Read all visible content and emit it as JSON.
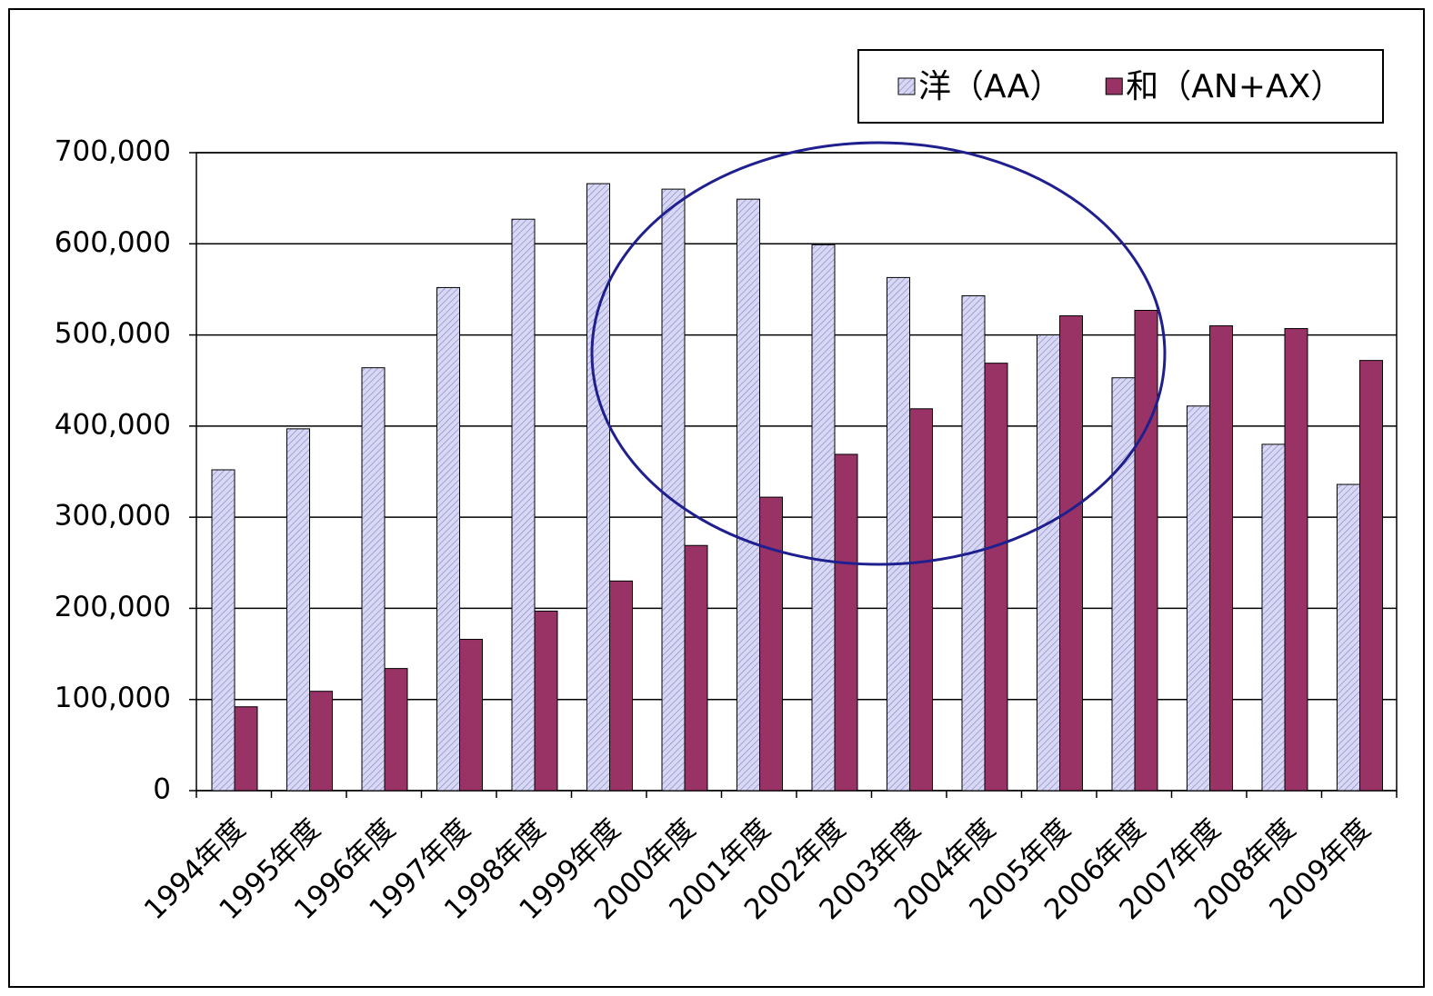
{
  "chart_data": {
    "type": "bar",
    "categories": [
      "1994年度",
      "1995年度",
      "1996年度",
      "1997年度",
      "1998年度",
      "1999年度",
      "2000年度",
      "2001年度",
      "2002年度",
      "2003年度",
      "2004年度",
      "2005年度",
      "2006年度",
      "2007年度",
      "2008年度",
      "2009年度"
    ],
    "series": [
      {
        "name": "洋（AA）",
        "color": "#d8d8f4",
        "pattern": "hatch",
        "values": [
          352000,
          397000,
          464000,
          552000,
          627000,
          666000,
          660000,
          649000,
          599000,
          563000,
          543000,
          500000,
          453000,
          422000,
          380000,
          336000
        ]
      },
      {
        "name": "和（AN+AX）",
        "color": "#993366",
        "values": [
          92000,
          109000,
          134000,
          166000,
          197000,
          230000,
          269000,
          322000,
          369000,
          419000,
          469000,
          521000,
          527000,
          510000,
          507000,
          472000
        ]
      }
    ],
    "ylim": [
      0,
      700000
    ],
    "yticks": [
      0,
      {
        "value": 100000,
        "label": "100,000"
      },
      {
        "value": 200000,
        "label": "200,000"
      },
      {
        "value": 300000,
        "label": "300,000"
      },
      {
        "value": 400000,
        "label": "400,000"
      },
      {
        "value": 500000,
        "label": "500,000"
      },
      {
        "value": 600000,
        "label": "600,000"
      },
      {
        "value": 700000,
        "label": "700,000"
      }
    ],
    "grid": true,
    "legend": "top-right"
  }
}
